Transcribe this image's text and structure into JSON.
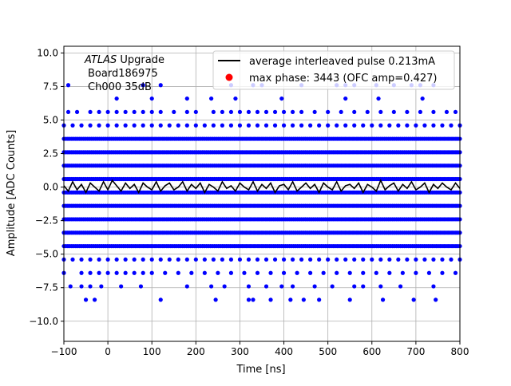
{
  "chart_data": {
    "type": "scatter",
    "title": "",
    "xlabel": "Time [ns]",
    "ylabel": "Amplitude [ADC Counts]",
    "xlim": [
      -100,
      800
    ],
    "ylim": [
      -11.5,
      10.5
    ],
    "xticks": [
      -100,
      0,
      100,
      200,
      300,
      400,
      500,
      600,
      700,
      800
    ],
    "yticks": [
      -10.0,
      -7.5,
      -5.0,
      -2.5,
      0.0,
      2.5,
      5.0,
      7.5,
      10.0
    ],
    "xtick_labels": [
      "−100",
      "0",
      "100",
      "200",
      "300",
      "400",
      "500",
      "600",
      "700",
      "800"
    ],
    "ytick_labels": [
      "−10.0",
      "−7.5",
      "−5.0",
      "−2.5",
      "0.0",
      "2.5",
      "5.0",
      "7.5",
      "10.0"
    ],
    "grid": true,
    "legend_position": "top-right",
    "annotation": {
      "italic": "ATLAS",
      "rest": " Upgrade",
      "line2": "Board186975",
      "line3": "Ch000 35dB"
    },
    "series": [
      {
        "name": "average interleaved pulse 0.213mA",
        "kind": "line",
        "color": "#000000",
        "x": [
          -100,
          -90,
          -80,
          -70,
          -60,
          -50,
          -40,
          -30,
          -20,
          -10,
          0,
          10,
          20,
          30,
          40,
          50,
          60,
          70,
          80,
          90,
          100,
          110,
          120,
          130,
          140,
          150,
          160,
          170,
          180,
          190,
          200,
          210,
          220,
          230,
          240,
          250,
          260,
          270,
          280,
          290,
          300,
          310,
          320,
          330,
          340,
          350,
          360,
          370,
          380,
          390,
          400,
          410,
          420,
          430,
          440,
          450,
          460,
          470,
          480,
          490,
          500,
          510,
          520,
          530,
          540,
          550,
          560,
          570,
          580,
          590,
          600,
          610,
          620,
          630,
          640,
          650,
          660,
          670,
          680,
          690,
          700,
          710,
          720,
          730,
          740,
          750,
          760,
          770,
          780,
          790,
          800
        ],
        "y": [
          0.1,
          -0.3,
          0.4,
          -0.2,
          0.2,
          -0.4,
          0.3,
          0.0,
          -0.3,
          0.4,
          -0.2,
          0.5,
          0.1,
          -0.3,
          0.3,
          -0.1,
          0.2,
          -0.4,
          0.3,
          0.0,
          -0.2,
          0.4,
          -0.3,
          0.1,
          0.3,
          -0.2,
          0.0,
          0.4,
          -0.3,
          0.2,
          -0.1,
          0.3,
          -0.4,
          0.2,
          0.0,
          -0.3,
          0.4,
          -0.1,
          0.1,
          -0.3,
          0.3,
          0.0,
          -0.2,
          0.4,
          -0.3,
          0.2,
          -0.1,
          0.3,
          -0.4,
          0.1,
          0.2,
          -0.2,
          0.4,
          -0.3,
          0.0,
          0.3,
          -0.1,
          0.2,
          -0.4,
          0.3,
          0.0,
          -0.2,
          0.4,
          -0.3,
          0.1,
          0.2,
          -0.1,
          0.3,
          -0.4,
          0.2,
          0.0,
          -0.3,
          0.5,
          -0.2,
          0.1,
          0.3,
          -0.3,
          0.2,
          -0.1,
          0.4,
          -0.2,
          0.0,
          0.3,
          -0.4,
          0.2,
          -0.1,
          0.3,
          0.0,
          -0.2,
          0.3,
          -0.1
        ]
      },
      {
        "name": "max phase: 3443 (OFC amp=0.427)",
        "kind": "scatter",
        "color": "#0000ff",
        "bands": [
          {
            "y": 3.6,
            "x_start": -100,
            "x_end": 800,
            "step": 4.5
          },
          {
            "y": 2.6,
            "x_start": -100,
            "x_end": 800,
            "step": 4.5
          },
          {
            "y": 1.6,
            "x_start": -100,
            "x_end": 800,
            "step": 4.5
          },
          {
            "y": 0.6,
            "x_start": -100,
            "x_end": 800,
            "step": 4.5
          },
          {
            "y": -0.4,
            "x_start": -100,
            "x_end": 800,
            "step": 4.5
          },
          {
            "y": -1.4,
            "x_start": -100,
            "x_end": 800,
            "step": 4.5
          },
          {
            "y": -2.4,
            "x_start": -100,
            "x_end": 800,
            "step": 4.5
          },
          {
            "y": -3.4,
            "x_start": -100,
            "x_end": 800,
            "step": 4.5
          },
          {
            "y": -4.4,
            "x_start": -100,
            "x_end": 800,
            "step": 4.5
          }
        ],
        "sparse_points": [
          {
            "y": 7.6,
            "x": [
              -90,
              80,
              120,
              280,
              330,
              350,
              440,
              520,
              540,
              560,
              610,
              650,
              690,
              710,
              740
            ]
          },
          {
            "y": 6.6,
            "x": [
              20,
              100,
              180,
              235,
              290,
              395,
              540,
              615,
              715
            ]
          },
          {
            "y": 5.6,
            "x": [
              -90,
              -70,
              -40,
              -20,
              0,
              20,
              40,
              60,
              80,
              100,
              120,
              150,
              180,
              200,
              240,
              260,
              280,
              300,
              320,
              340,
              360,
              380,
              400,
              420,
              440,
              470,
              500,
              530,
              560,
              590,
              620,
              650,
              680,
              710,
              740,
              770,
              790
            ]
          },
          {
            "y": 4.6,
            "x": [
              -100,
              -80,
              -60,
              -40,
              -20,
              0,
              20,
              40,
              60,
              80,
              100,
              120,
              140,
              160,
              180,
              200,
              220,
              240,
              260,
              280,
              300,
              320,
              340,
              360,
              380,
              400,
              420,
              440,
              460,
              480,
              500,
              520,
              540,
              560,
              580,
              600,
              620,
              640,
              660,
              680,
              700,
              720,
              740,
              760,
              780,
              800
            ]
          },
          {
            "y": -5.4,
            "x": [
              -100,
              -80,
              -60,
              -40,
              -20,
              0,
              20,
              40,
              60,
              80,
              100,
              120,
              140,
              160,
              180,
              200,
              220,
              240,
              260,
              280,
              300,
              320,
              340,
              360,
              380,
              400,
              420,
              440,
              460,
              480,
              500,
              520,
              540,
              560,
              580,
              600,
              620,
              640,
              660,
              680,
              700,
              720,
              740,
              760,
              780,
              800
            ]
          },
          {
            "y": -6.4,
            "x": [
              -100,
              -60,
              -40,
              -20,
              0,
              20,
              40,
              60,
              80,
              100,
              130,
              160,
              190,
              220,
              250,
              280,
              310,
              340,
              370,
              400,
              430,
              460,
              490,
              520,
              550,
              580,
              610,
              640,
              670,
              700,
              730,
              760,
              790
            ]
          },
          {
            "y": -7.4,
            "x": [
              -85,
              -60,
              -40,
              -15,
              30,
              75,
              180,
              235,
              265,
              320,
              360,
              395,
              420,
              470,
              510,
              560,
              580,
              620,
              665,
              740
            ]
          },
          {
            "y": -8.4,
            "x": [
              -50,
              -30,
              120,
              245,
              320,
              330,
              370,
              415,
              445,
              480,
              550,
              625,
              695,
              745
            ]
          }
        ]
      },
      {
        "name": "max phase: 3443 (OFC amp=0.427)",
        "kind": "marker",
        "color": "#ff0000",
        "x": [],
        "y": []
      }
    ]
  }
}
